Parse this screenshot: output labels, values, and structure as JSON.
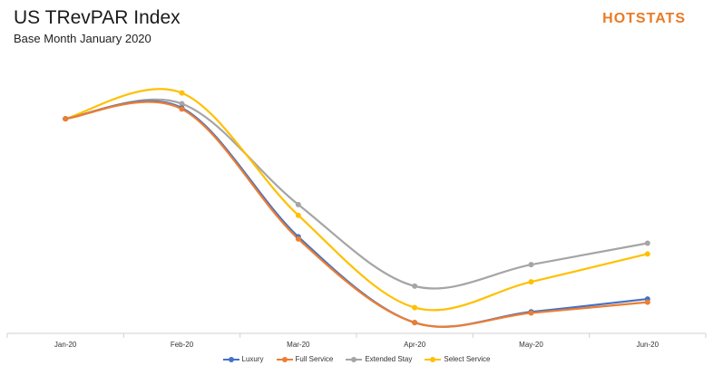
{
  "header": {
    "title": "US TRevPAR Index",
    "subtitle": "Base Month January 2020",
    "logo": "HOTSTATS"
  },
  "colors": {
    "luxury": "#4472c4",
    "full_service": "#ed7d31",
    "extended_stay": "#a5a5a5",
    "select_service": "#ffc000",
    "logo": "#e97b25"
  },
  "chart_data": {
    "type": "line",
    "smooth": true,
    "categories": [
      "Jan-20",
      "Feb-20",
      "Mar-20",
      "Apr-20",
      "May-20",
      "Jun-20"
    ],
    "series": [
      {
        "name": "Luxury",
        "color": "#4472c4",
        "values": [
          100,
          105,
          45,
          5,
          10,
          16
        ]
      },
      {
        "name": "Full Service",
        "color": "#ed7d31",
        "values": [
          100,
          104.5,
          44,
          5,
          9.5,
          14.5
        ]
      },
      {
        "name": "Extended Stay",
        "color": "#a5a5a5",
        "values": [
          100,
          107,
          60,
          22,
          32,
          42
        ]
      },
      {
        "name": "Select Service",
        "color": "#ffc000",
        "values": [
          100,
          112,
          55,
          12,
          24,
          37
        ]
      }
    ],
    "ylim": [
      0,
      130
    ],
    "grid": false,
    "y_axis_visible": false,
    "legend_position": "bottom"
  }
}
